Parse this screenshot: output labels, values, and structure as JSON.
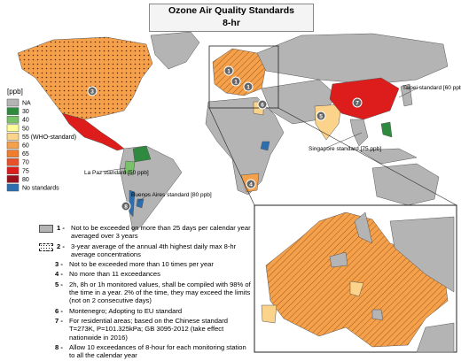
{
  "header": {
    "title": "Ozone Air Quality Standards",
    "subtitle": "8-hr"
  },
  "legend": {
    "unit": "[ppb]",
    "items": [
      {
        "label": "NA",
        "color": "#b4b4b4"
      },
      {
        "label": "30",
        "color": "#2e8a3e"
      },
      {
        "label": "40",
        "color": "#79c26a"
      },
      {
        "label": "50",
        "color": "#ffff99"
      },
      {
        "label": "55 (WHO-standard)",
        "color": "#fbd38a"
      },
      {
        "label": "60",
        "color": "#f5a04a"
      },
      {
        "label": "65",
        "color": "#ef7d2d"
      },
      {
        "label": "70",
        "color": "#e8502a"
      },
      {
        "label": "75",
        "color": "#dd1c1c"
      },
      {
        "label": "80",
        "color": "#9b0f1a"
      },
      {
        "label": "No standards",
        "color": "#2c6fb0"
      }
    ]
  },
  "annotations": [
    "Taipei standard [60 ppb]",
    "Singapore standard [75 ppb]",
    "La Paz standard [50 ppb]",
    "Buenos Aires standard [80 ppb]"
  ],
  "markers": [
    "3",
    "1",
    "1",
    "1",
    "6",
    "7",
    "5",
    "4",
    "8"
  ],
  "notes": [
    {
      "number": "1 -",
      "text": "Not to be exceeded on more than 25 days per calendar year averaged over 3 years"
    },
    {
      "number": "2 -",
      "text": "3-year average of the annual 4th highest daily max 8-hr average concentrations"
    },
    {
      "number": "3 -",
      "text": "Not to be exceeded more than 10 times per year"
    },
    {
      "number": "4 -",
      "text": "No more than 11 exceedances"
    },
    {
      "number": "5 -",
      "text": "2h, 8h or 1h monitored values, shall be compiled with 98% of the time in a year. 2% of the time, they may exceed the limits (not on 2 consecutive days)"
    },
    {
      "number": "6 -",
      "text": "Montenegro; Adopting to EU standard"
    },
    {
      "number": "7 -",
      "text": "For residential areas; based on the Chinese standard T=273K, P=101.325kPa; GB 3095-2012 (take effect nationwide in 2016)"
    },
    {
      "number": "8 -",
      "text": "Allow 10 exceedances of 8-hour for each monitoring station to all the calendar year"
    }
  ]
}
